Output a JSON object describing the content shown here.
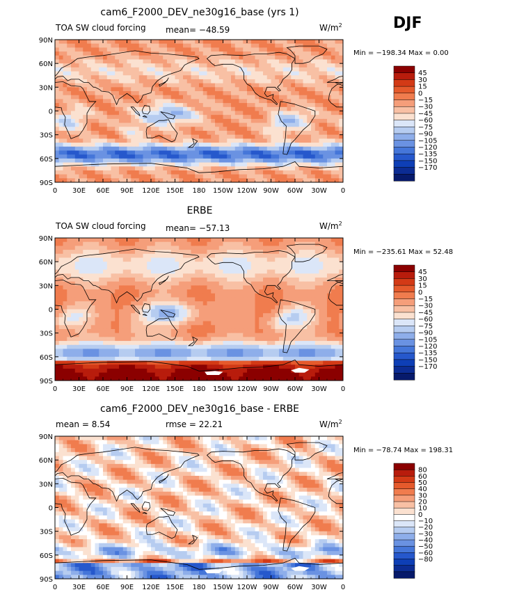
{
  "season": "DJF",
  "units": {
    "base": "W/m",
    "exp": "2"
  },
  "axes": {
    "lon_ticks": [
      "0",
      "30E",
      "60E",
      "90E",
      "120E",
      "150E",
      "180",
      "150W",
      "120W",
      "90W",
      "60W",
      "30W",
      "0"
    ],
    "lat_ticks": [
      "90N",
      "60N",
      "30N",
      "0",
      "30S",
      "60S",
      "90S"
    ]
  },
  "colors": {
    "land_outline": "#000000",
    "palette_abs": [
      "#8b0000",
      "#b81c0c",
      "#d33a16",
      "#e55a2c",
      "#f07c4e",
      "#f59e7a",
      "#f8c0a4",
      "#fbe1d0",
      "#dbe6f8",
      "#b6ccf0",
      "#8eaeea",
      "#6a92e2",
      "#4576d9",
      "#2658cc",
      "#0e3fb6",
      "#0c2c93",
      "#071a6b"
    ],
    "palette_diff": [
      "#8b0000",
      "#b81c0c",
      "#d33a16",
      "#e55a2c",
      "#f07c4e",
      "#f59e7a",
      "#f8c0a4",
      "#fbe1d0",
      "#ffffff",
      "#dbe6f8",
      "#b6ccf0",
      "#8eaeea",
      "#6a92e2",
      "#4576d9",
      "#2658cc",
      "#0e3fb6",
      "#0c2c93",
      "#071a6b"
    ]
  },
  "panels": [
    {
      "title": "cam6_F2000_DEV_ne30g16_base (yrs 1)",
      "left_label": "TOA SW cloud forcing",
      "center_label": "mean= −48.59",
      "minmax": "Min = −198.34  Max =    0.00",
      "colorbar_labels": [
        "45",
        "30",
        "15",
        "0",
        "−15",
        "−30",
        "−45",
        "−60",
        "−75",
        "−90",
        "−105",
        "−120",
        "−135",
        "−150",
        "−170"
      ]
    },
    {
      "title": "ERBE",
      "left_label": "TOA SW cloud forcing",
      "center_label": "mean= −57.13",
      "minmax": "Min = −235.61  Max =  52.48",
      "colorbar_labels": [
        "45",
        "30",
        "15",
        "0",
        "−15",
        "−30",
        "−45",
        "−60",
        "−75",
        "−90",
        "−105",
        "−120",
        "−135",
        "−150",
        "−170"
      ]
    },
    {
      "title": "cam6_F2000_DEV_ne30g16_base - ERBE",
      "left_label": "mean =    8.54",
      "center_label": "rmse =   22.21",
      "minmax": "Min = −78.74  Max = 198.31",
      "colorbar_labels": [
        "80",
        "60",
        "50",
        "40",
        "30",
        "20",
        "10",
        "0",
        "−10",
        "−20",
        "−30",
        "−40",
        "−50",
        "−60",
        "−80"
      ]
    }
  ],
  "chart_data": [
    {
      "type": "heatmap",
      "title": "cam6_F2000_DEV_ne30g16_base (yrs 1)",
      "variable": "TOA SW cloud forcing",
      "units": "W/m^2",
      "mean": -48.59,
      "min": -198.34,
      "max": 0.0,
      "xlim": [
        0,
        360
      ],
      "ylim": [
        -90,
        90
      ],
      "contour_levels": [
        45,
        30,
        15,
        0,
        -15,
        -30,
        -45,
        -60,
        -75,
        -90,
        -105,
        -120,
        -135,
        -150,
        -170
      ]
    },
    {
      "type": "heatmap",
      "title": "ERBE",
      "variable": "TOA SW cloud forcing",
      "units": "W/m^2",
      "mean": -57.13,
      "min": -235.61,
      "max": 52.48,
      "xlim": [
        0,
        360
      ],
      "ylim": [
        -90,
        90
      ],
      "contour_levels": [
        45,
        30,
        15,
        0,
        -15,
        -30,
        -45,
        -60,
        -75,
        -90,
        -105,
        -120,
        -135,
        -150,
        -170
      ]
    },
    {
      "type": "heatmap",
      "title": "cam6_F2000_DEV_ne30g16_base - ERBE",
      "units": "W/m^2",
      "mean": 8.54,
      "rmse": 22.21,
      "min": -78.74,
      "max": 198.31,
      "xlim": [
        0,
        360
      ],
      "ylim": [
        -90,
        90
      ],
      "contour_levels": [
        80,
        60,
        50,
        40,
        30,
        20,
        10,
        0,
        -10,
        -20,
        -30,
        -40,
        -50,
        -60,
        -80
      ]
    }
  ]
}
